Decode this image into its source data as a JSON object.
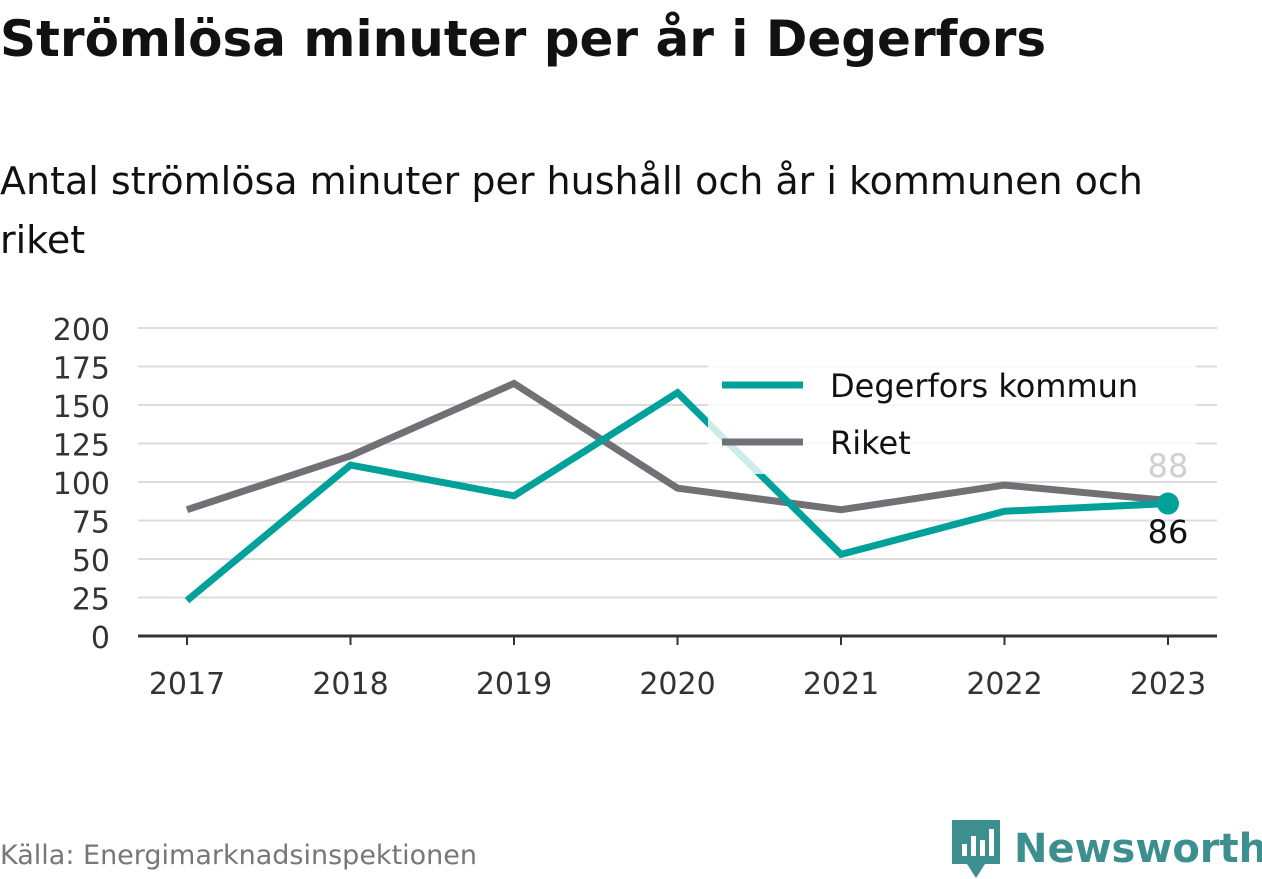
{
  "title": "Strömlösa minuter per år i Degerfors",
  "subtitle": "Antal strömlösa minuter per hushåll och år i kommunen och riket",
  "source": "Källa: Energimarknadsinspektionen",
  "brand": {
    "name": "Newsworthy",
    "icon": "newsworthy-logo-icon",
    "color": "#3d8f8f"
  },
  "chart_data": {
    "type": "line",
    "x": [
      "2017",
      "2018",
      "2019",
      "2020",
      "2021",
      "2022",
      "2023"
    ],
    "series": [
      {
        "name": "Degerfors kommun",
        "color": "#00a19a",
        "values": [
          23,
          111,
          91,
          158,
          53,
          81,
          86
        ]
      },
      {
        "name": "Riket",
        "color": "#717075",
        "values": [
          82,
          117,
          164,
          96,
          82,
          98,
          88
        ]
      }
    ],
    "ylim": [
      0,
      200
    ],
    "yticks": [
      0,
      25,
      50,
      75,
      100,
      125,
      150,
      175,
      200
    ],
    "end_labels": {
      "Degerfors kommun": "86",
      "Riket": "88"
    },
    "grid": true,
    "legend_position": "top-right"
  }
}
